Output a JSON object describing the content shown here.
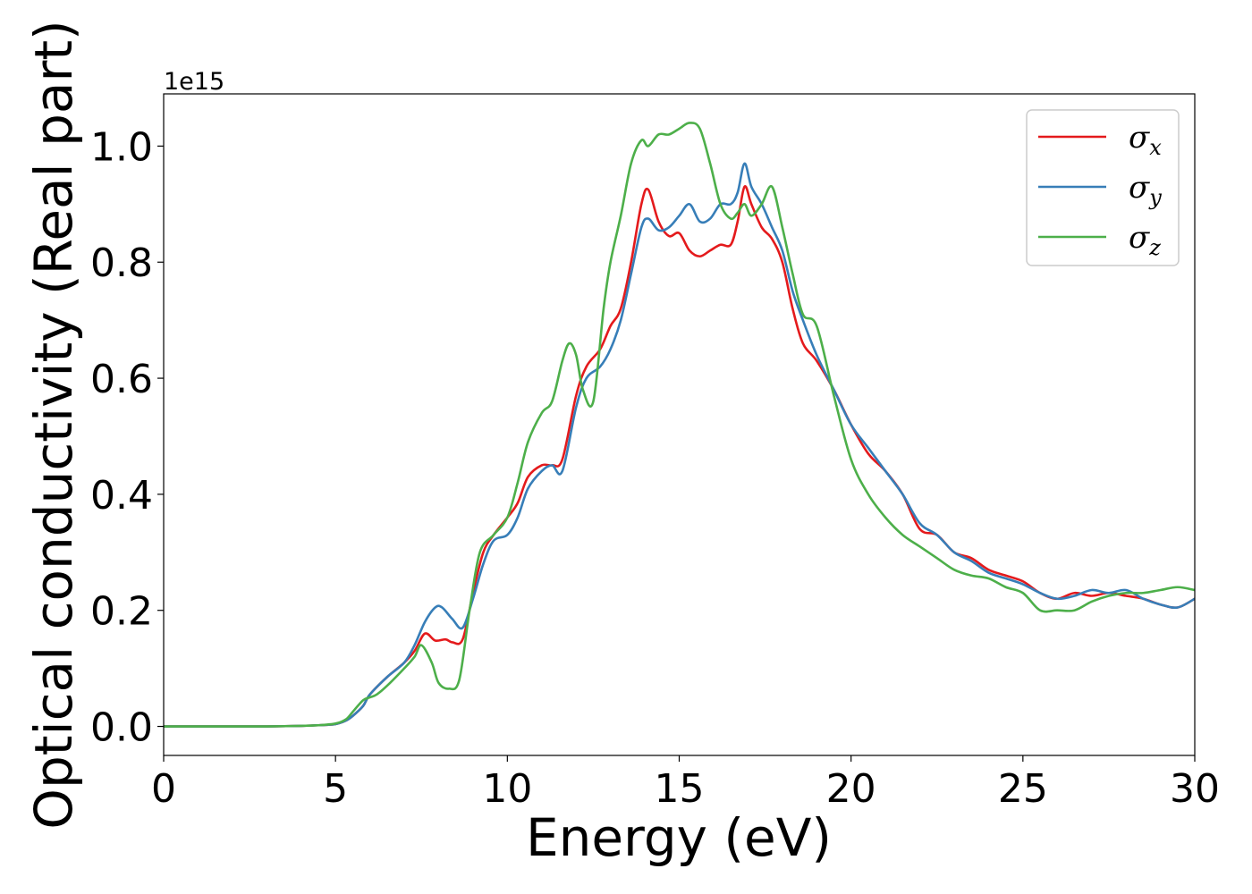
{
  "chart_data": {
    "type": "line",
    "xlabel": "Energy (eV)",
    "ylabel": "Optical conductivity (Real part)",
    "y_offset_label": "1e15",
    "xlim": [
      0,
      30
    ],
    "ylim": [
      -0.05,
      1.09
    ],
    "x_ticks": [
      "0",
      "5",
      "10",
      "15",
      "20",
      "25",
      "30"
    ],
    "x_tick_values": [
      0,
      5,
      10,
      15,
      20,
      25,
      30
    ],
    "y_ticks": [
      "0.0",
      "0.2",
      "0.4",
      "0.6",
      "0.8",
      "1.0"
    ],
    "y_tick_values": [
      0,
      0.2,
      0.4,
      0.6,
      0.8,
      1.0
    ],
    "grid": false,
    "legend_position": "top-right",
    "series": [
      {
        "name": "σx",
        "symbol": "σ",
        "subscript": "x",
        "color": "#e41a1c",
        "x": [
          0,
          1,
          2,
          3,
          4,
          4.5,
          5,
          5.3,
          5.5,
          5.8,
          6,
          6.5,
          7,
          7.3,
          7.6,
          7.9,
          8.2,
          8.4,
          8.7,
          9,
          9.3,
          9.6,
          10,
          10.3,
          10.6,
          11,
          11.3,
          11.6,
          12,
          12.3,
          12.7,
          13,
          13.3,
          13.6,
          13.9,
          14.1,
          14.4,
          14.7,
          15,
          15.3,
          15.6,
          15.9,
          16.2,
          16.5,
          16.7,
          16.9,
          17.1,
          17.4,
          17.7,
          18,
          18.3,
          18.6,
          19,
          19.5,
          20,
          20.5,
          21,
          21.5,
          22,
          22.5,
          23,
          23.5,
          24,
          24.5,
          25,
          25.5,
          26,
          26.5,
          27,
          27.5,
          28,
          28.5,
          29,
          29.5,
          30
        ],
        "y": [
          0,
          0,
          0,
          0,
          0.001,
          0.002,
          0.004,
          0.01,
          0.018,
          0.035,
          0.055,
          0.085,
          0.11,
          0.13,
          0.16,
          0.148,
          0.15,
          0.145,
          0.15,
          0.23,
          0.3,
          0.33,
          0.36,
          0.385,
          0.43,
          0.45,
          0.45,
          0.46,
          0.57,
          0.62,
          0.65,
          0.69,
          0.72,
          0.8,
          0.9,
          0.925,
          0.87,
          0.845,
          0.85,
          0.82,
          0.81,
          0.82,
          0.83,
          0.83,
          0.87,
          0.93,
          0.9,
          0.86,
          0.84,
          0.8,
          0.72,
          0.66,
          0.63,
          0.58,
          0.52,
          0.47,
          0.44,
          0.4,
          0.34,
          0.33,
          0.3,
          0.29,
          0.27,
          0.26,
          0.25,
          0.23,
          0.22,
          0.23,
          0.225,
          0.23,
          0.225,
          0.22,
          0.21,
          0.205,
          0.22
        ]
      },
      {
        "name": "σy",
        "symbol": "σ",
        "subscript": "y",
        "color": "#377eb8",
        "x": [
          0,
          1,
          2,
          3,
          4,
          4.5,
          5,
          5.3,
          5.5,
          5.8,
          6,
          6.5,
          7,
          7.3,
          7.6,
          7.9,
          8.1,
          8.4,
          8.7,
          9,
          9.3,
          9.6,
          10,
          10.3,
          10.6,
          11,
          11.3,
          11.6,
          12,
          12.3,
          12.7,
          13,
          13.3,
          13.6,
          13.9,
          14.1,
          14.4,
          14.7,
          15,
          15.3,
          15.6,
          15.9,
          16.2,
          16.5,
          16.7,
          16.9,
          17.1,
          17.4,
          17.7,
          18,
          18.3,
          18.6,
          19,
          19.5,
          20,
          20.5,
          21,
          21.5,
          22,
          22.5,
          23,
          23.5,
          24,
          24.5,
          25,
          25.5,
          26,
          26.5,
          27,
          27.5,
          28,
          28.5,
          29,
          29.5,
          30
        ],
        "y": [
          0,
          0,
          0,
          0,
          0.001,
          0.002,
          0.004,
          0.01,
          0.018,
          0.035,
          0.055,
          0.085,
          0.11,
          0.14,
          0.18,
          0.205,
          0.205,
          0.185,
          0.17,
          0.22,
          0.28,
          0.32,
          0.33,
          0.36,
          0.41,
          0.44,
          0.45,
          0.44,
          0.55,
          0.6,
          0.62,
          0.65,
          0.7,
          0.78,
          0.86,
          0.875,
          0.855,
          0.86,
          0.88,
          0.9,
          0.87,
          0.875,
          0.9,
          0.9,
          0.92,
          0.97,
          0.93,
          0.9,
          0.86,
          0.82,
          0.75,
          0.7,
          0.64,
          0.58,
          0.52,
          0.48,
          0.44,
          0.4,
          0.35,
          0.33,
          0.3,
          0.285,
          0.265,
          0.255,
          0.245,
          0.23,
          0.22,
          0.225,
          0.235,
          0.23,
          0.235,
          0.22,
          0.21,
          0.205,
          0.22
        ]
      },
      {
        "name": "σz",
        "symbol": "σ",
        "subscript": "z",
        "color": "#4daf4a",
        "x": [
          0,
          1,
          2,
          3,
          4,
          4.5,
          5,
          5.3,
          5.5,
          5.8,
          6,
          6.2,
          6.5,
          7,
          7.3,
          7.5,
          7.8,
          8,
          8.3,
          8.6,
          8.9,
          9.2,
          9.6,
          10,
          10.3,
          10.6,
          11,
          11.3,
          11.6,
          11.8,
          12,
          12.2,
          12.5,
          12.8,
          13,
          13.3,
          13.6,
          13.9,
          14.1,
          14.4,
          14.7,
          15,
          15.3,
          15.6,
          15.9,
          16.2,
          16.5,
          16.7,
          16.9,
          17.1,
          17.4,
          17.7,
          18,
          18.3,
          18.6,
          19,
          19.5,
          20,
          20.5,
          21,
          21.5,
          22,
          22.5,
          23,
          23.5,
          24,
          24.5,
          25,
          25.5,
          26,
          26.5,
          27,
          27.5,
          28,
          28.5,
          29,
          29.5,
          30
        ],
        "y": [
          0,
          0,
          0,
          0,
          0.001,
          0.002,
          0.005,
          0.012,
          0.025,
          0.045,
          0.05,
          0.055,
          0.07,
          0.1,
          0.12,
          0.14,
          0.11,
          0.075,
          0.065,
          0.08,
          0.2,
          0.3,
          0.33,
          0.36,
          0.42,
          0.49,
          0.54,
          0.56,
          0.63,
          0.66,
          0.64,
          0.58,
          0.56,
          0.72,
          0.8,
          0.88,
          0.97,
          1.01,
          1.0,
          1.02,
          1.02,
          1.03,
          1.04,
          1.03,
          0.97,
          0.9,
          0.875,
          0.885,
          0.9,
          0.88,
          0.9,
          0.93,
          0.86,
          0.78,
          0.71,
          0.69,
          0.57,
          0.46,
          0.4,
          0.36,
          0.33,
          0.31,
          0.29,
          0.27,
          0.26,
          0.255,
          0.24,
          0.23,
          0.2,
          0.2,
          0.2,
          0.215,
          0.225,
          0.23,
          0.23,
          0.235,
          0.24,
          0.235
        ]
      }
    ]
  }
}
